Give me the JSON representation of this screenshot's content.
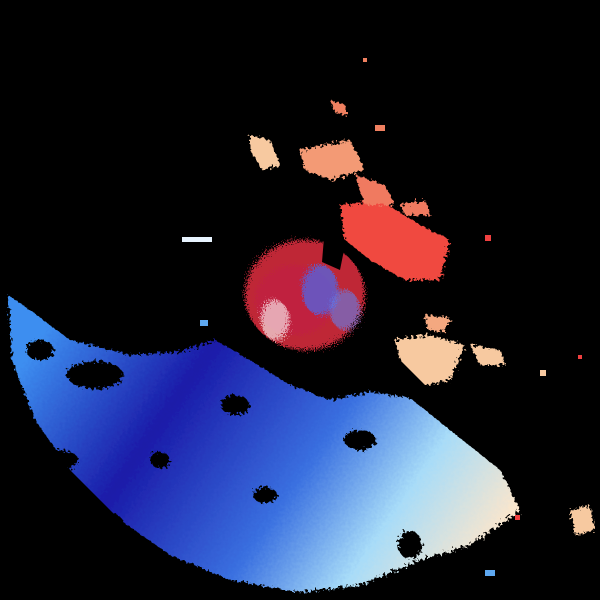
{
  "colors": {
    "background": "#000000",
    "inbound_strong": "#1a1aa8",
    "inbound_mid": "#2f5fe8",
    "inbound_light": "#5ea8f0",
    "near_zero": "#e8f4ff",
    "outbound_light": "#f7c9a0",
    "outbound_mid": "#f09070",
    "outbound_strong": "#f04040"
  }
}
